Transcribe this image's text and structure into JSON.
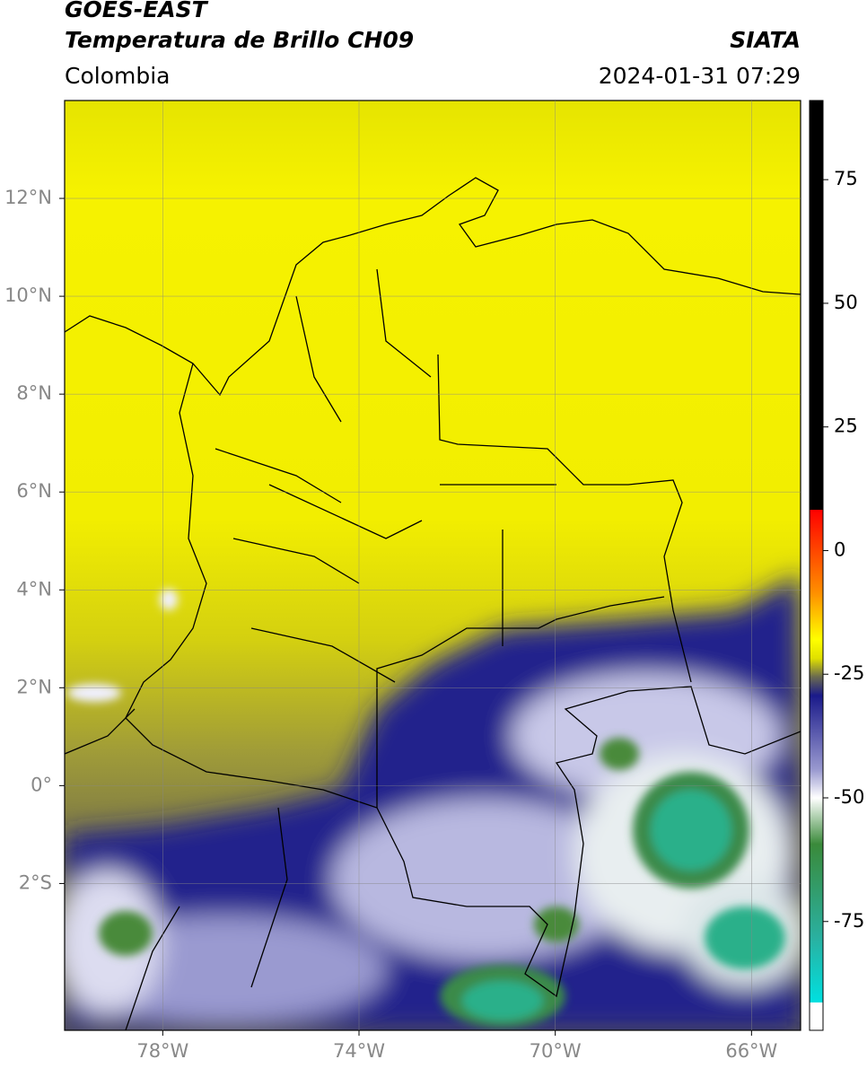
{
  "header": {
    "satellite": "GOES-EAST",
    "product": "Temperatura de Brillo CH09",
    "source": "SIATA",
    "region": "Colombia",
    "datetime": "2024-01-31 07:29"
  },
  "map": {
    "xlim": [
      -80,
      -65
    ],
    "ylim": [
      -5,
      14
    ],
    "xticks": [
      {
        "value": -78,
        "label": "78°W"
      },
      {
        "value": -74,
        "label": "74°W"
      },
      {
        "value": -70,
        "label": "70°W"
      },
      {
        "value": -66,
        "label": "66°W"
      }
    ],
    "yticks": [
      {
        "value": 12,
        "label": "12°N"
      },
      {
        "value": 10,
        "label": "10°N"
      },
      {
        "value": 8,
        "label": "8°N"
      },
      {
        "value": 6,
        "label": "6°N"
      },
      {
        "value": 4,
        "label": "4°N"
      },
      {
        "value": 2,
        "label": "2°N"
      },
      {
        "value": 0,
        "label": "0°"
      },
      {
        "value": -2,
        "label": "2°S"
      }
    ]
  },
  "colorbar": {
    "ylim": [
      -97,
      91
    ],
    "yticks": [
      75,
      50,
      25,
      0,
      -25,
      -50,
      -75
    ]
  }
}
